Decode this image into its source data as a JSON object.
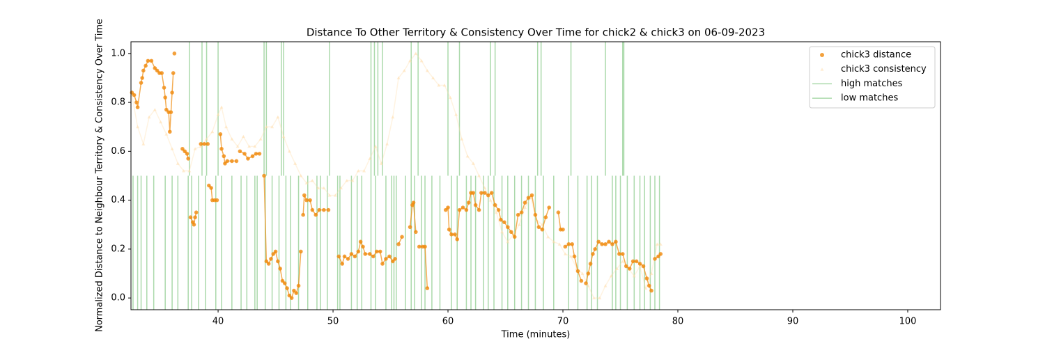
{
  "chart_data": {
    "type": "scatter",
    "title": "Distance To Other Territory & Consistency Over Time for chick2 & chick3 on 06-09-2023",
    "x_label": "Time (minutes)",
    "y_label": "Normalized Distance to Neighbour Territory & Consistency Over Time",
    "xlim": [
      32.42,
      102.85
    ],
    "ylim": [
      -0.048,
      1.048
    ],
    "xticks": [
      40,
      50,
      60,
      70,
      80,
      90,
      100
    ],
    "yticks": [
      {
        "value": 0,
        "label": "0.0"
      },
      0.2,
      0.4,
      0.6,
      0.8,
      {
        "value": 1,
        "label": "1.0"
      }
    ],
    "legend": "upper right",
    "series": [
      {
        "name": "chick3 distance",
        "color": "#f08a0c",
        "marker": "circle",
        "x": [
          32.5,
          32.7,
          32.9,
          33.0,
          33.3,
          33.4,
          33.5,
          33.7,
          33.9,
          34.2,
          34.5,
          34.7,
          34.9,
          35.1,
          35.3,
          35.4,
          35.5,
          35.7,
          35.8,
          35.9,
          36.0,
          36.1,
          null,
          36.2,
          null,
          36.9,
          37.1,
          37.3,
          37.4,
          null,
          37.6,
          37.8,
          37.9,
          38.0,
          38.1,
          null,
          38.5,
          38.8,
          39.1,
          null,
          39.2,
          39.4,
          39.5,
          39.7,
          39.9,
          null,
          40.2,
          40.3,
          40.5,
          40.6,
          40.8,
          41.2,
          41.6,
          null,
          41.9,
          42.3,
          42.6,
          43.0,
          43.3,
          43.6,
          null,
          44.0,
          44.2,
          44.4,
          44.6,
          44.8,
          45.0,
          45.2,
          45.4,
          45.6,
          45.8,
          46.0,
          46.2,
          46.4,
          46.6,
          46.8,
          47.0,
          47.2,
          null,
          47.4,
          47.5,
          47.7,
          48.0,
          48.2,
          48.5,
          48.8,
          49.2,
          49.6,
          null,
          50.5,
          50.8,
          51.0,
          51.3,
          51.6,
          51.9,
          52.2,
          52.4,
          52.6,
          52.8,
          53.2,
          53.5,
          53.8,
          54.1,
          54.3,
          54.6,
          54.9,
          55.2,
          55.4,
          null,
          55.7,
          56.0,
          null,
          56.7,
          56.9,
          57.0,
          57.2,
          null,
          57.5,
          57.8,
          58.0,
          58.2,
          null,
          59.8,
          60.0,
          60.1,
          60.3,
          60.6,
          60.8,
          61.0,
          61.3,
          61.6,
          61.8,
          62.0,
          62.2,
          62.4,
          62.7,
          62.9,
          63.2,
          63.5,
          63.8,
          64.1,
          64.4,
          64.6,
          64.9,
          65.2,
          65.5,
          65.8,
          66.1,
          66.4,
          66.7,
          67.0,
          67.3,
          67.6,
          67.9,
          68.2,
          68.5,
          68.8,
          null,
          69.6,
          69.8,
          70.0,
          null,
          70.2,
          70.5,
          70.8,
          71.0,
          71.3,
          71.6,
          null,
          72.0,
          72.2,
          72.4,
          72.6,
          72.8,
          73.1,
          73.4,
          73.7,
          74.0,
          74.3,
          74.6,
          74.9,
          75.2,
          75.5,
          75.8,
          76.1,
          76.4,
          76.7,
          77.0,
          77.3,
          77.5,
          77.7,
          null,
          78.0,
          78.3,
          78.5
        ],
        "values": [
          0.84,
          0.83,
          0.8,
          0.78,
          0.88,
          0.9,
          0.93,
          0.95,
          0.97,
          0.97,
          0.94,
          0.93,
          0.92,
          0.92,
          0.86,
          0.82,
          0.77,
          0.76,
          0.68,
          0.76,
          0.84,
          0.92,
          null,
          1.0,
          null,
          0.61,
          0.6,
          0.59,
          0.57,
          null,
          0.33,
          0.31,
          0.3,
          0.33,
          0.35,
          null,
          0.63,
          0.63,
          0.63,
          null,
          0.46,
          0.45,
          0.4,
          0.4,
          0.4,
          null,
          0.67,
          0.61,
          0.58,
          0.55,
          0.56,
          0.56,
          0.56,
          null,
          0.6,
          0.59,
          0.57,
          0.58,
          0.59,
          0.59,
          null,
          0.5,
          0.15,
          0.14,
          0.16,
          0.18,
          0.19,
          0.15,
          0.12,
          0.07,
          0.06,
          0.04,
          0.01,
          0.0,
          0.03,
          0.02,
          0.05,
          0.19,
          null,
          0.34,
          0.42,
          0.4,
          0.4,
          0.36,
          0.34,
          0.36,
          0.36,
          0.36,
          null,
          0.17,
          0.14,
          0.17,
          0.16,
          0.18,
          0.17,
          0.19,
          0.23,
          0.21,
          0.18,
          0.18,
          0.17,
          0.19,
          0.19,
          0.14,
          0.16,
          0.17,
          0.15,
          0.16,
          null,
          0.22,
          0.25,
          null,
          0.29,
          0.38,
          0.39,
          0.27,
          null,
          0.21,
          0.21,
          0.21,
          0.04,
          null,
          0.36,
          0.37,
          0.28,
          0.26,
          0.26,
          0.24,
          0.36,
          0.37,
          0.36,
          0.39,
          0.43,
          0.43,
          0.38,
          0.36,
          0.43,
          0.43,
          0.42,
          0.43,
          0.38,
          0.36,
          0.32,
          0.31,
          0.29,
          0.27,
          0.25,
          0.34,
          0.35,
          0.39,
          0.41,
          0.42,
          0.34,
          0.29,
          0.28,
          0.33,
          0.37,
          null,
          0.35,
          0.28,
          0.28,
          null,
          0.21,
          0.22,
          0.22,
          0.17,
          0.11,
          0.07,
          null,
          0.06,
          0.1,
          0.14,
          0.18,
          0.2,
          0.23,
          0.22,
          0.22,
          0.23,
          0.22,
          0.23,
          0.18,
          0.18,
          0.13,
          0.12,
          0.15,
          0.15,
          0.14,
          0.13,
          0.08,
          0.05,
          0.03,
          null,
          0.16,
          0.17,
          0.18
        ]
      },
      {
        "name": "chick3 consistency",
        "color": "#ffdca8",
        "marker": "triangle",
        "x": [
          32.5,
          33.0,
          33.5,
          34.0,
          34.5,
          35.0,
          35.5,
          36.0,
          36.5,
          37.0,
          37.5,
          38.0,
          38.5,
          39.0,
          39.5,
          40.0,
          40.3,
          40.7,
          41.2,
          41.7,
          42.2,
          42.7,
          43.2,
          43.7,
          44.2,
          44.7,
          45.2,
          45.7,
          46.2,
          46.7,
          47.2,
          47.7,
          48.2,
          48.7,
          49.2,
          49.7,
          50.2,
          50.7,
          51.2,
          51.7,
          52.2,
          52.7,
          53.2,
          53.7,
          54.2,
          54.7,
          55.2,
          55.7,
          56.2,
          56.7,
          57.2,
          57.7,
          58.2,
          58.7,
          59.2,
          59.7,
          60.2,
          60.7,
          61.2,
          61.7,
          62.2,
          62.7,
          63.2,
          63.7,
          64.2,
          64.7,
          65.2,
          65.7,
          66.2,
          66.7,
          67.2,
          67.7,
          68.2,
          68.7,
          69.2,
          69.7,
          70.2,
          70.7,
          71.2,
          71.7,
          72.2,
          72.7,
          73.2,
          73.7,
          74.2,
          74.7,
          75.2,
          75.7,
          76.2,
          76.7,
          77.2,
          77.7,
          78.2,
          78.5
        ],
        "values": [
          0.83,
          0.7,
          0.63,
          0.74,
          0.77,
          0.72,
          0.67,
          0.61,
          0.55,
          0.52,
          0.52,
          0.61,
          0.62,
          0.65,
          0.68,
          0.75,
          0.78,
          0.7,
          0.65,
          0.62,
          0.66,
          0.62,
          0.62,
          0.65,
          0.7,
          0.7,
          0.74,
          0.66,
          0.6,
          0.55,
          0.5,
          0.47,
          0.48,
          0.45,
          0.45,
          0.42,
          0.42,
          0.45,
          0.48,
          0.48,
          0.52,
          0.52,
          0.57,
          0.62,
          0.55,
          0.63,
          0.74,
          0.9,
          0.93,
          0.97,
          1.0,
          0.97,
          0.93,
          0.9,
          0.87,
          0.87,
          0.82,
          0.75,
          0.65,
          0.58,
          0.55,
          0.5,
          0.45,
          0.4,
          0.35,
          0.27,
          0.23,
          0.26,
          0.3,
          0.37,
          0.41,
          0.32,
          0.3,
          0.25,
          0.23,
          0.22,
          0.18,
          0.17,
          0.12,
          0.1,
          0.05,
          0.0,
          0.0,
          0.05,
          0.09,
          0.12,
          0.15,
          0.12,
          0.09,
          0.13,
          0.04,
          0.1,
          0.22,
          0.22
        ]
      },
      {
        "name": "high matches",
        "color": "#2ca02c",
        "marker": "vline",
        "yspan": [
          0.5,
          1
        ],
        "values": [
          37.5,
          38.6,
          39.0,
          40.0,
          44.0,
          44.2,
          45.5,
          45.7,
          49.7,
          53.3,
          53.6,
          53.9,
          54.3,
          56.8,
          57.4,
          60.0,
          61.0,
          63.7,
          64.1,
          67.8,
          68.1,
          70.7,
          73.7,
          75.2,
          75.3
        ]
      },
      {
        "name": "low matches",
        "color": "#2ca02c",
        "marker": "vline",
        "yspan": [
          0,
          0.5
        ],
        "values": [
          32.6,
          33.0,
          33.3,
          33.8,
          34.4,
          35.4,
          36.0,
          36.5,
          37.4,
          37.7,
          38.3,
          38.9,
          39.8,
          40.3,
          41.2,
          42.0,
          42.5,
          43.2,
          43.4,
          44.1,
          44.7,
          45.3,
          45.9,
          46.3,
          47.0,
          47.8,
          48.6,
          48.9,
          49.5,
          50.4,
          50.6,
          51.6,
          52.1,
          52.5,
          53.3,
          53.7,
          54.6,
          55.1,
          55.3,
          55.5,
          56.3,
          56.8,
          57.1,
          57.7,
          58.0,
          58.6,
          59.3,
          60.3,
          60.8,
          61.6,
          62.0,
          62.4,
          63.1,
          63.5,
          64.0,
          64.7,
          65.2,
          65.8,
          66.4,
          67.0,
          67.6,
          68.3,
          69.2,
          70.5,
          71.3,
          72.1,
          72.5,
          73.0,
          74.3,
          74.6,
          75.0,
          75.6,
          76.2,
          76.7,
          77.1,
          77.6,
          78.0,
          78.4
        ]
      }
    ]
  }
}
